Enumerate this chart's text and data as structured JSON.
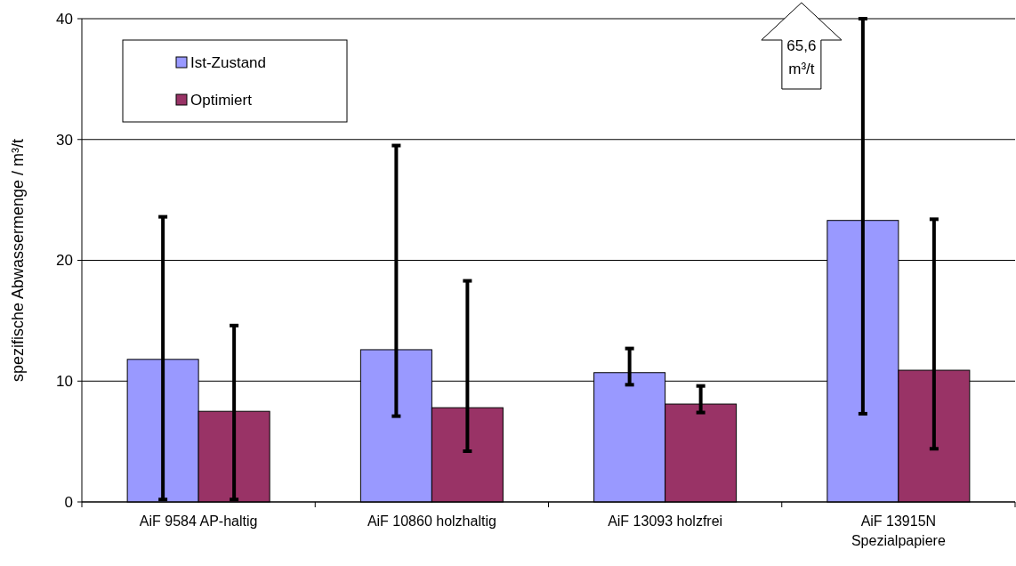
{
  "chart_data": {
    "type": "bar",
    "ylabel": "spezifische Abwassermenge / m³/t",
    "categories": [
      "AiF 9584 AP-haltig",
      "AiF 10860 holzhaltig",
      "AiF 13093 holzfrei",
      "AiF 13915N\nSpezialpapiere"
    ],
    "series": [
      {
        "name": "Ist-Zustand",
        "color": "#9999ff",
        "values": [
          11.8,
          12.6,
          10.7,
          23.3
        ],
        "errors": [
          [
            0.2,
            23.6
          ],
          [
            7.1,
            29.5
          ],
          [
            9.7,
            12.7
          ],
          [
            7.3,
            40
          ]
        ]
      },
      {
        "name": "Optimiert",
        "color": "#993366",
        "values": [
          7.5,
          7.8,
          8.1,
          10.9
        ],
        "errors": [
          [
            0.2,
            14.6
          ],
          [
            4.2,
            18.3
          ],
          [
            7.4,
            9.6
          ],
          [
            4.4,
            23.4
          ]
        ]
      }
    ],
    "ylim": [
      0,
      40
    ],
    "yticks": [
      0,
      10,
      20,
      30,
      40
    ],
    "grid": "y",
    "legend": "top left",
    "annotations": [
      "65,6\nm³/t"
    ]
  }
}
